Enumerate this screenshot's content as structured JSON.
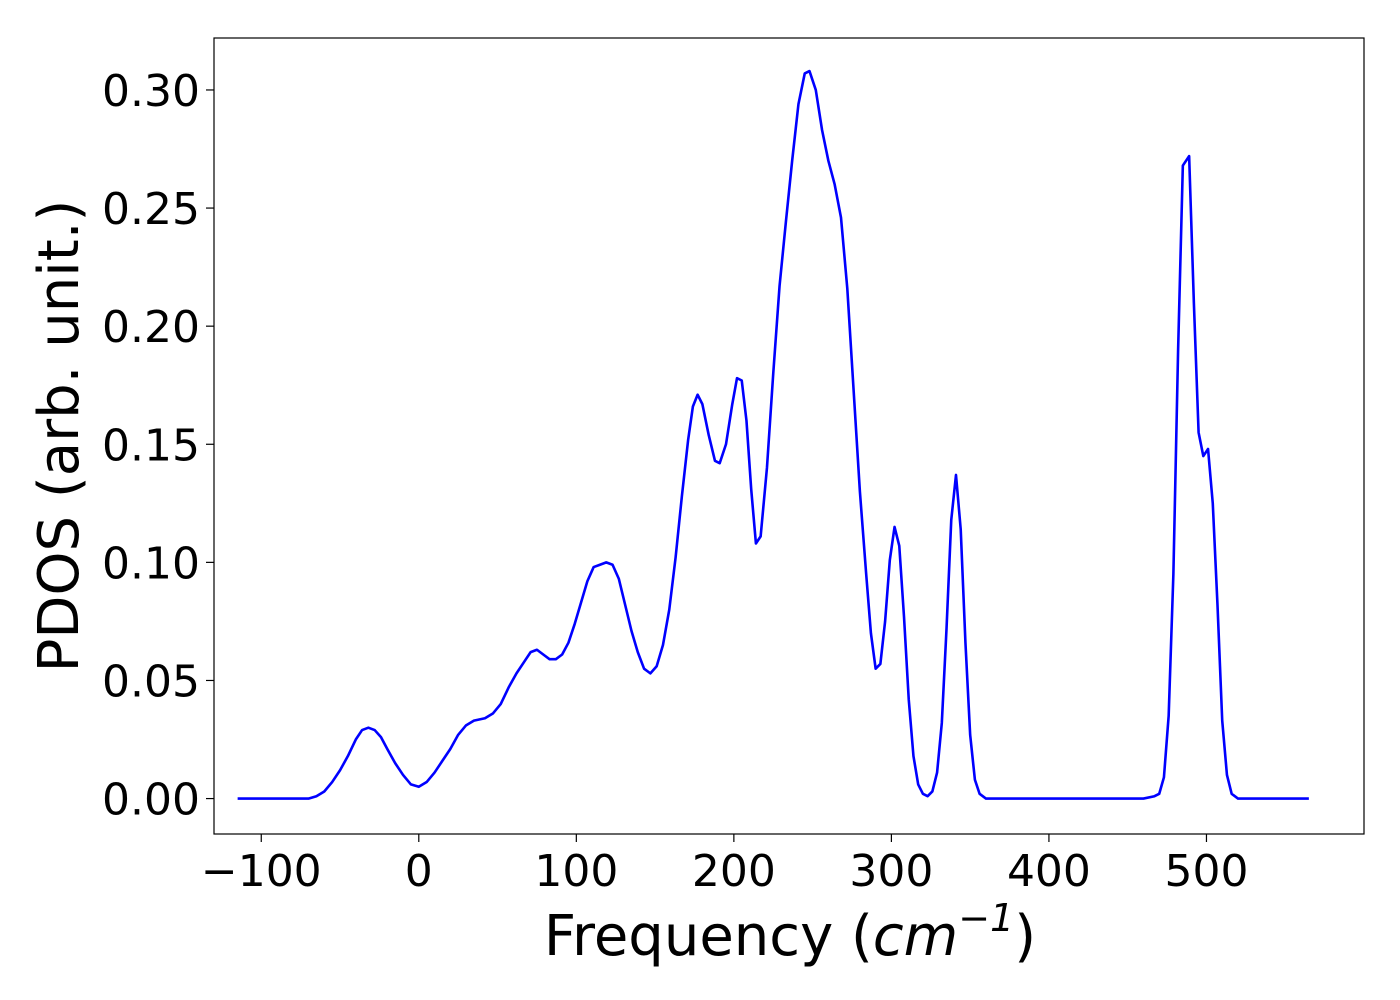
{
  "chart_data": {
    "type": "line",
    "title": "",
    "xlabel_prefix": "Frequency (",
    "xlabel_unit": "cm",
    "xlabel_exponent": "−1",
    "xlabel_suffix": ")",
    "ylabel": "PDOS (arb. unit.)",
    "xlim": [
      -130,
      600
    ],
    "ylim": [
      -0.015,
      0.322
    ],
    "x_ticks": [
      -100,
      0,
      100,
      200,
      300,
      400,
      500
    ],
    "x_tick_labels": [
      "−100",
      "0",
      "100",
      "200",
      "300",
      "400",
      "500"
    ],
    "y_ticks": [
      0.0,
      0.05,
      0.1,
      0.15,
      0.2,
      0.25,
      0.3
    ],
    "y_tick_labels": [
      "0.00",
      "0.05",
      "0.10",
      "0.15",
      "0.20",
      "0.25",
      "0.30"
    ],
    "grid": false,
    "line_color": "#0000ff",
    "series": [
      {
        "points": [
          [
            -115,
            0.0
          ],
          [
            -70,
            0.0
          ],
          [
            -65,
            0.001
          ],
          [
            -60,
            0.003
          ],
          [
            -55,
            0.007
          ],
          [
            -50,
            0.012
          ],
          [
            -45,
            0.018
          ],
          [
            -40,
            0.025
          ],
          [
            -36,
            0.029
          ],
          [
            -32,
            0.03
          ],
          [
            -28,
            0.029
          ],
          [
            -24,
            0.026
          ],
          [
            -20,
            0.021
          ],
          [
            -15,
            0.015
          ],
          [
            -10,
            0.01
          ],
          [
            -5,
            0.006
          ],
          [
            0,
            0.005
          ],
          [
            5,
            0.007
          ],
          [
            10,
            0.011
          ],
          [
            15,
            0.016
          ],
          [
            20,
            0.021
          ],
          [
            25,
            0.027
          ],
          [
            30,
            0.031
          ],
          [
            35,
            0.033
          ],
          [
            42,
            0.034
          ],
          [
            47,
            0.036
          ],
          [
            52,
            0.04
          ],
          [
            57,
            0.047
          ],
          [
            62,
            0.053
          ],
          [
            67,
            0.058
          ],
          [
            71,
            0.062
          ],
          [
            75,
            0.063
          ],
          [
            79,
            0.061
          ],
          [
            83,
            0.059
          ],
          [
            87,
            0.059
          ],
          [
            91,
            0.061
          ],
          [
            95,
            0.066
          ],
          [
            99,
            0.074
          ],
          [
            103,
            0.083
          ],
          [
            107,
            0.092
          ],
          [
            111,
            0.098
          ],
          [
            115,
            0.099
          ],
          [
            119,
            0.1
          ],
          [
            123,
            0.099
          ],
          [
            127,
            0.093
          ],
          [
            131,
            0.082
          ],
          [
            135,
            0.071
          ],
          [
            139,
            0.062
          ],
          [
            143,
            0.055
          ],
          [
            147,
            0.053
          ],
          [
            151,
            0.056
          ],
          [
            155,
            0.065
          ],
          [
            159,
            0.08
          ],
          [
            163,
            0.102
          ],
          [
            167,
            0.128
          ],
          [
            171,
            0.152
          ],
          [
            174,
            0.166
          ],
          [
            177,
            0.171
          ],
          [
            180,
            0.167
          ],
          [
            184,
            0.154
          ],
          [
            188,
            0.143
          ],
          [
            191,
            0.142
          ],
          [
            195,
            0.15
          ],
          [
            199,
            0.167
          ],
          [
            202,
            0.178
          ],
          [
            205,
            0.177
          ],
          [
            208,
            0.16
          ],
          [
            211,
            0.131
          ],
          [
            214,
            0.108
          ],
          [
            217,
            0.111
          ],
          [
            221,
            0.14
          ],
          [
            225,
            0.18
          ],
          [
            229,
            0.217
          ],
          [
            233,
            0.244
          ],
          [
            237,
            0.27
          ],
          [
            241,
            0.294
          ],
          [
            245,
            0.307
          ],
          [
            248,
            0.308
          ],
          [
            252,
            0.3
          ],
          [
            256,
            0.283
          ],
          [
            260,
            0.27
          ],
          [
            264,
            0.26
          ],
          [
            268,
            0.246
          ],
          [
            272,
            0.216
          ],
          [
            276,
            0.173
          ],
          [
            280,
            0.13
          ],
          [
            284,
            0.095
          ],
          [
            287,
            0.07
          ],
          [
            290,
            0.055
          ],
          [
            293,
            0.057
          ],
          [
            296,
            0.075
          ],
          [
            299,
            0.101
          ],
          [
            302,
            0.115
          ],
          [
            305,
            0.107
          ],
          [
            308,
            0.077
          ],
          [
            311,
            0.042
          ],
          [
            314,
            0.018
          ],
          [
            317,
            0.006
          ],
          [
            320,
            0.002
          ],
          [
            323,
            0.001
          ],
          [
            326,
            0.003
          ],
          [
            329,
            0.011
          ],
          [
            332,
            0.032
          ],
          [
            335,
            0.072
          ],
          [
            338,
            0.118
          ],
          [
            341,
            0.137
          ],
          [
            344,
            0.114
          ],
          [
            347,
            0.066
          ],
          [
            350,
            0.027
          ],
          [
            353,
            0.008
          ],
          [
            356,
            0.002
          ],
          [
            360,
            0.0
          ],
          [
            400,
            0.0
          ],
          [
            460,
            0.0
          ],
          [
            467,
            0.001
          ],
          [
            470,
            0.002
          ],
          [
            473,
            0.009
          ],
          [
            476,
            0.035
          ],
          [
            479,
            0.095
          ],
          [
            482,
            0.19
          ],
          [
            485,
            0.268
          ],
          [
            489,
            0.272
          ],
          [
            492,
            0.21
          ],
          [
            495,
            0.155
          ],
          [
            498,
            0.145
          ],
          [
            501,
            0.148
          ],
          [
            504,
            0.125
          ],
          [
            507,
            0.082
          ],
          [
            510,
            0.033
          ],
          [
            513,
            0.01
          ],
          [
            516,
            0.002
          ],
          [
            520,
            0.0
          ],
          [
            565,
            0.0
          ]
        ]
      }
    ]
  }
}
